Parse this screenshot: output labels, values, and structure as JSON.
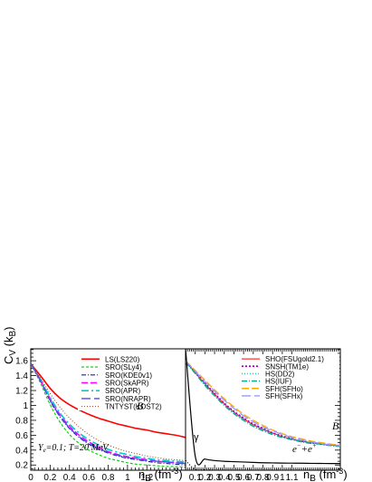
{
  "chart_data": [
    {
      "type": "line",
      "panel": "left",
      "ylabel": "C_V (k_B)",
      "xlabel": "n_B (fm^-3)",
      "xlim": [
        0,
        0.16
      ],
      "ylim": [
        0.13,
        1.76
      ],
      "x_ticks": [
        "0",
        "0.2",
        "0.4",
        "0.6",
        "0.8",
        "1",
        "1.2"
      ],
      "x_tick_values": [
        0,
        0.02,
        0.04,
        0.06,
        0.08,
        0.1,
        0.12
      ],
      "y_ticks": [
        "0.2",
        "0.4",
        "0.6",
        "0.8",
        "1",
        "1.2",
        "1.4",
        "1.6"
      ],
      "y_tick_values": [
        0.2,
        0.4,
        0.6,
        0.8,
        1.0,
        1.2,
        1.4,
        1.6
      ],
      "x": [
        0.0,
        0.01,
        0.02,
        0.03,
        0.04,
        0.05,
        0.06,
        0.07,
        0.08,
        0.09,
        0.1,
        0.11,
        0.12,
        0.13,
        0.14,
        0.15,
        0.16
      ],
      "series": [
        {
          "name": "LS(LS220)",
          "color": "#ff0000",
          "dash": "solid",
          "width": 1.6,
          "values": [
            1.56,
            1.4,
            1.23,
            1.1,
            1.01,
            0.94,
            0.88,
            0.83,
            0.79,
            0.75,
            0.72,
            0.69,
            0.67,
            0.64,
            0.62,
            0.6,
            0.57
          ]
        },
        {
          "name": "SRO(SLy4)",
          "color": "#00cc00",
          "dash": "3,2",
          "width": 1.1,
          "values": [
            1.56,
            1.3,
            1.01,
            0.78,
            0.61,
            0.49,
            0.4,
            0.34,
            0.29,
            0.26,
            0.23,
            0.21,
            0.2,
            0.19,
            0.18,
            0.18,
            0.17
          ]
        },
        {
          "name": "SRO(KDE0v1)",
          "color": "#2020a0",
          "dash": "5,2,1,2",
          "width": 1.1,
          "values": [
            1.56,
            1.33,
            1.06,
            0.85,
            0.69,
            0.57,
            0.48,
            0.41,
            0.36,
            0.32,
            0.29,
            0.27,
            0.25,
            0.23,
            0.22,
            0.21,
            0.2
          ]
        },
        {
          "name": "SRO(SkAPR)",
          "color": "#ff00ff",
          "dash": "7,3",
          "width": 1.6,
          "values": [
            1.56,
            1.34,
            1.09,
            0.88,
            0.72,
            0.6,
            0.51,
            0.44,
            0.38,
            0.34,
            0.31,
            0.29,
            0.27,
            0.25,
            0.24,
            0.23,
            0.22
          ]
        },
        {
          "name": "SRO(APR)",
          "color": "#00cccc",
          "dash": "8,3,2,3",
          "width": 1.6,
          "values": [
            1.56,
            1.35,
            1.11,
            0.9,
            0.75,
            0.63,
            0.54,
            0.47,
            0.41,
            0.37,
            0.34,
            0.31,
            0.29,
            0.27,
            0.26,
            0.25,
            0.24
          ]
        },
        {
          "name": "SRO(NRAPR)",
          "color": "#4a4af0",
          "dash": "10,4",
          "width": 1.3,
          "values": [
            1.56,
            1.33,
            1.07,
            0.86,
            0.7,
            0.58,
            0.49,
            0.42,
            0.37,
            0.33,
            0.3,
            0.28,
            0.26,
            0.25,
            0.24,
            0.23,
            0.22
          ]
        },
        {
          "name": "TNTYST(KOST2)",
          "color": "#8b4513",
          "dash": "1,2",
          "width": 1.0,
          "values": [
            1.56,
            1.37,
            1.16,
            0.98,
            0.83,
            0.71,
            0.61,
            0.53,
            0.47,
            0.42,
            0.38,
            0.35,
            0.32,
            0.3,
            0.28,
            0.27,
            0.26
          ]
        }
      ],
      "annotations": [
        "B",
        "Y_e=0.1; T=20 MeV"
      ],
      "legend_position": "top-right"
    },
    {
      "type": "line",
      "panel": "right",
      "xlabel": "n_B (fm^-3)",
      "xlim": [
        0,
        0.16
      ],
      "ylim": [
        0.13,
        1.76
      ],
      "x_ticks": [
        "0.1",
        "0.2",
        "0.3",
        "0.4",
        "0.5",
        "0.6",
        "0.7",
        "0.8",
        "0.9",
        "1",
        "1.1"
      ],
      "x_tick_values": [
        0.01,
        0.02,
        0.03,
        0.04,
        0.05,
        0.06,
        0.07,
        0.08,
        0.09,
        0.1,
        0.11
      ],
      "x": [
        0.0,
        0.01,
        0.02,
        0.03,
        0.04,
        0.05,
        0.06,
        0.07,
        0.08,
        0.09,
        0.1,
        0.11,
        0.12,
        0.13,
        0.14,
        0.15,
        0.16
      ],
      "series": [
        {
          "name": "SHO(FSUgold2.1)",
          "color": "#ff0000",
          "dash": "solid",
          "width": 1.0,
          "values": [
            1.59,
            1.44,
            1.29,
            1.15,
            1.02,
            0.91,
            0.82,
            0.74,
            0.68,
            0.63,
            0.58,
            0.55,
            0.52,
            0.5,
            0.48,
            0.47,
            0.46
          ]
        },
        {
          "name": "SNSH(TM1e)",
          "color": "#9900cc",
          "dash": "2,2",
          "width": 1.8,
          "values": [
            1.6,
            1.45,
            1.3,
            1.16,
            1.03,
            0.92,
            0.83,
            0.75,
            0.69,
            0.63,
            0.59,
            0.55,
            0.52,
            0.5,
            0.48,
            0.47,
            0.46
          ]
        },
        {
          "name": "HS(DD2)",
          "color": "#33cccc",
          "dash": "1,2",
          "width": 1.6,
          "values": [
            1.59,
            1.44,
            1.28,
            1.14,
            1.01,
            0.9,
            0.81,
            0.73,
            0.67,
            0.62,
            0.58,
            0.55,
            0.52,
            0.5,
            0.48,
            0.47,
            0.46
          ]
        },
        {
          "name": "HS(IUF)",
          "color": "#00aa88",
          "dash": "6,2,1,2",
          "width": 1.4,
          "values": [
            1.58,
            1.43,
            1.27,
            1.13,
            1.0,
            0.89,
            0.8,
            0.72,
            0.66,
            0.61,
            0.57,
            0.54,
            0.51,
            0.49,
            0.48,
            0.46,
            0.45
          ]
        },
        {
          "name": "SFH(SFHo)",
          "color": "#ffaa00",
          "dash": "8,3",
          "width": 1.4,
          "values": [
            1.6,
            1.47,
            1.34,
            1.21,
            1.09,
            0.98,
            0.88,
            0.8,
            0.73,
            0.67,
            0.62,
            0.58,
            0.55,
            0.52,
            0.5,
            0.48,
            0.46
          ]
        },
        {
          "name": "SFH(SFHx)",
          "color": "#9999ff",
          "dash": "10,4",
          "width": 1.3,
          "values": [
            1.6,
            1.46,
            1.32,
            1.19,
            1.07,
            0.96,
            0.86,
            0.78,
            0.71,
            0.66,
            0.61,
            0.57,
            0.54,
            0.51,
            0.49,
            0.47,
            0.46
          ]
        },
        {
          "name": "",
          "color": "#000000",
          "dash": "solid",
          "width": 1.2,
          "values": [
            1.76,
            0.32,
            0.28,
            0.26,
            0.25,
            0.245,
            0.24,
            0.235,
            0.23,
            0.228,
            0.226,
            0.225,
            0.224,
            0.222,
            0.221,
            0.22,
            0.22
          ]
        },
        {
          "name": "",
          "color": "#000000",
          "dash": "1,2",
          "width": 1.3,
          "values": [
            0.26,
            0.14,
            0.135,
            0.13,
            0.13,
            0.13,
            0.13,
            0.13,
            0.13,
            0.13,
            0.13,
            0.13,
            0.13,
            0.13,
            0.13,
            0.13,
            0.13
          ]
        }
      ],
      "annotations": [
        "B",
        "γ",
        "e⁻+e⁺"
      ],
      "legend_position": "top-right"
    }
  ]
}
